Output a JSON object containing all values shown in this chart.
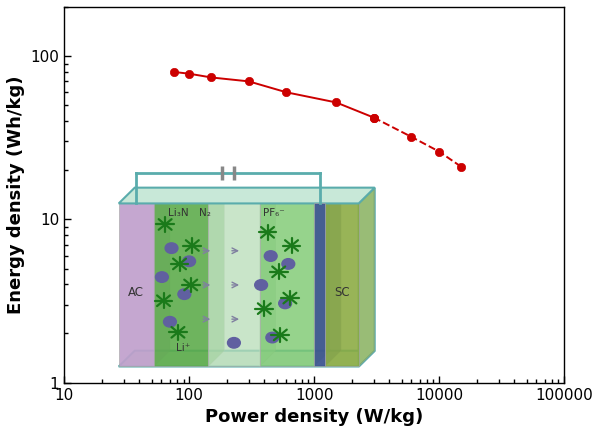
{
  "power_density": [
    75,
    100,
    150,
    300,
    600,
    1500,
    3000,
    6000,
    10000,
    15000
  ],
  "energy_density": [
    80,
    78,
    74,
    70,
    60,
    52,
    42,
    32,
    26,
    21
  ],
  "line_color": "#cc0000",
  "marker_color": "#cc0000",
  "marker_size": 6,
  "line_width": 1.4,
  "xlabel": "Power density (W/kg)",
  "ylabel": "Energy density (Wh/kg)",
  "xlabel_fontsize": 13,
  "ylabel_fontsize": 13,
  "tick_fontsize": 11,
  "background_color": "#ffffff",
  "xticks": [
    10,
    100,
    1000,
    10000,
    100000
  ],
  "yticks": [
    1,
    10,
    100
  ],
  "inset_left_color": "#c0a0cc",
  "inset_green_color": "#5aaa48",
  "inset_sep_color": "#b8ddb8",
  "inset_sep_right_color": "#c8e8c0",
  "inset_blue_color": "#3a5090",
  "inset_olive_color": "#8aaa40",
  "inset_frame_color": "#5aacac",
  "inset_mol_color": "#1a7a1a",
  "inset_ion_color": "#6060a0",
  "wire_color": "#5aacac",
  "cap_color": "#888888",
  "text_color": "#333333",
  "label_AC": "AC",
  "label_SC": "SC",
  "label_Li3N": "Li₃N",
  "label_N2": "N₂",
  "label_PF6": "PF₆⁻",
  "label_Li": "Li⁺"
}
